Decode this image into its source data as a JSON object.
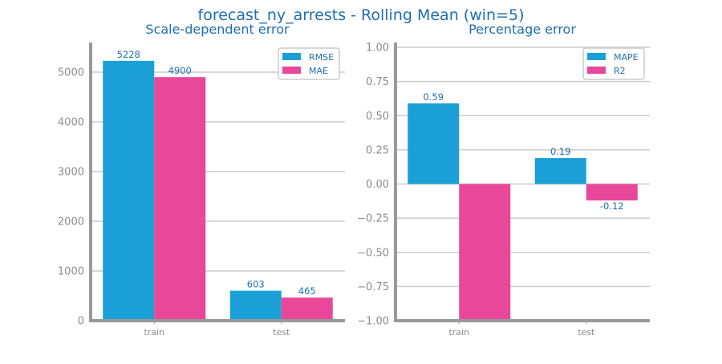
{
  "title": "forecast_ny_arrests - Rolling Mean (win=5)",
  "colors": {
    "primary": "#1a9fd7",
    "secondary": "#e8479a",
    "text": "#1f6fb0",
    "tick": "#8c8c8c",
    "axis": "#999999",
    "grid": "#cccccc"
  },
  "chart_data": [
    {
      "type": "bar",
      "title": "Scale-dependent error",
      "categories": [
        "train",
        "test"
      ],
      "series": [
        {
          "name": "RMSE",
          "values": [
            5228,
            603
          ]
        },
        {
          "name": "MAE",
          "values": [
            4900,
            465
          ]
        }
      ],
      "data_labels": [
        [
          "5228",
          "603"
        ],
        [
          "4900",
          "465"
        ]
      ],
      "ylim": [
        0,
        5500
      ],
      "yticks": [
        0,
        1000,
        2000,
        3000,
        4000,
        5000
      ],
      "ytick_labels": [
        "0",
        "1000",
        "2000",
        "3000",
        "4000",
        "5000"
      ],
      "legend": "top-right",
      "grid": true
    },
    {
      "type": "bar",
      "title": "Percentage error",
      "categories": [
        "train",
        "test"
      ],
      "series": [
        {
          "name": "MAPE",
          "values": [
            0.59,
            0.19
          ]
        },
        {
          "name": "R2",
          "values": [
            -1.0,
            -0.12
          ]
        }
      ],
      "data_labels": [
        [
          "0.59",
          "0.19"
        ],
        [
          "",
          "-0.12"
        ]
      ],
      "ylim": [
        -1.0,
        1.0
      ],
      "yticks": [
        -1.0,
        -0.75,
        -0.5,
        -0.25,
        0.0,
        0.25,
        0.5,
        0.75,
        1.0
      ],
      "ytick_labels": [
        "−1.00",
        "−0.75",
        "−0.50",
        "−0.25",
        "0.00",
        "0.25",
        "0.50",
        "0.75",
        "1.00"
      ],
      "legend": "top-right",
      "grid": true
    }
  ]
}
